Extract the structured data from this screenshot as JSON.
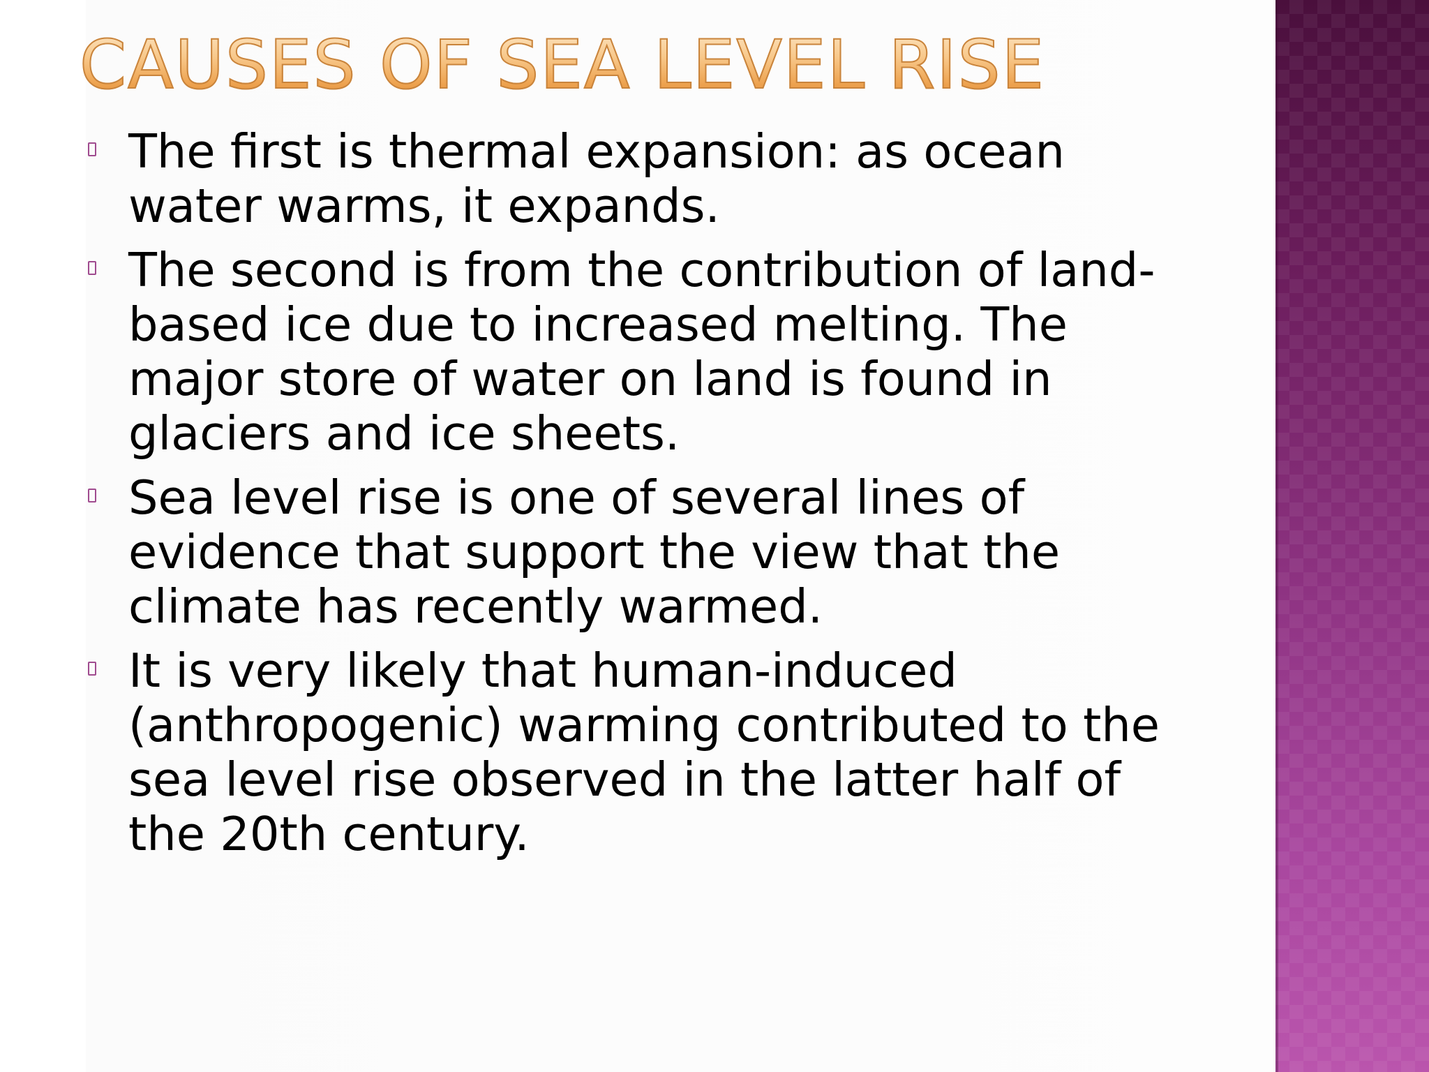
{
  "slide": {
    "title": "CAUSES OF SEA LEVEL RISE",
    "bullets": [
      {
        "text": "The first is thermal expansion: as ocean water warms, it expands."
      },
      {
        "text": "The second is from the contribution of land-based ice due to increased melting. The major store of water on land is found in glaciers and ice sheets."
      },
      {
        "text": "Sea level rise is one of several lines of evidence that support the view that the climate has recently warmed."
      },
      {
        "text": "It is very likely that human-induced (anthropogenic) warming contributed to the sea level rise observed in the latter half of the 20th century."
      }
    ]
  },
  "theme": {
    "title_color": "#f0a95a",
    "side_band_colors": [
      "#4a0f3c",
      "#ba55ad"
    ],
    "bullet_marker_color": "#a04b8f",
    "bullet_icon": "square-outline-bullet"
  }
}
